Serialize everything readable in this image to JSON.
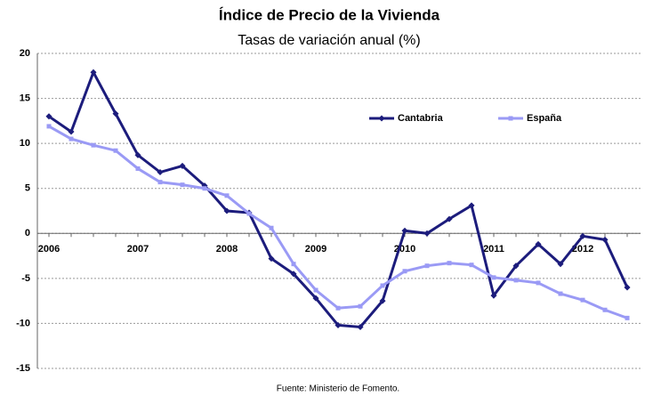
{
  "chart_data": {
    "type": "line",
    "title": "Índice de Precio de la Vivienda",
    "subtitle": "Tasas de variación anual (%)",
    "source": "Fuente: Ministerio de Fomento.",
    "categories": [
      "2006",
      null,
      null,
      null,
      "2007",
      null,
      null,
      null,
      "2008",
      null,
      null,
      null,
      "2009",
      null,
      null,
      null,
      "2010",
      null,
      null,
      null,
      "2011",
      null,
      null,
      null,
      "2012",
      null,
      null
    ],
    "series": [
      {
        "name": "Cantabria",
        "color": "#1c1c7c",
        "values": [
          13.0,
          11.3,
          17.9,
          13.3,
          8.7,
          6.8,
          7.5,
          5.3,
          2.5,
          2.3,
          -2.8,
          -4.5,
          -7.2,
          -10.2,
          -10.4,
          -7.5,
          0.3,
          0.0,
          1.6,
          3.1,
          -6.9,
          -3.6,
          -1.2,
          -3.4,
          -0.3,
          -0.7,
          -6.0
        ]
      },
      {
        "name": "España",
        "color": "#9a9af5",
        "values": [
          11.9,
          10.5,
          9.8,
          9.2,
          7.2,
          5.7,
          5.4,
          5.0,
          4.2,
          2.2,
          0.6,
          -3.4,
          -6.3,
          -8.3,
          -8.1,
          -5.8,
          -4.2,
          -3.6,
          -3.3,
          -3.5,
          -4.9,
          -5.2,
          -5.5,
          -6.7,
          -7.4,
          -8.5,
          -9.4
        ]
      }
    ],
    "ylim": [
      -15,
      20
    ],
    "yticks": [
      -15,
      -10,
      -5,
      0,
      5,
      10,
      15,
      20
    ],
    "grid": true,
    "legend": "top-right"
  }
}
